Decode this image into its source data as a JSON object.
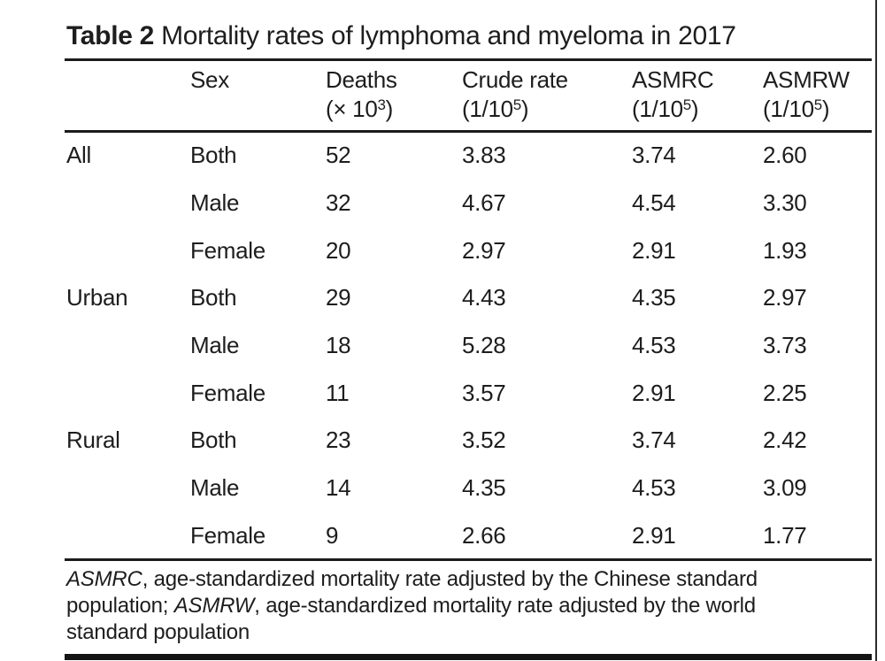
{
  "page": {
    "background": "#ffffff",
    "text_color": "#1d1d1d",
    "rule_color": "#1b1b1b"
  },
  "title": {
    "label": "Table 2",
    "text": "Mortality rates of lymphoma and myeloma in 2017"
  },
  "chart_data": {
    "type": "table",
    "title": "Table 2 Mortality rates of lymphoma and myeloma in 2017",
    "columns": [
      {
        "key": "group",
        "label": "",
        "unit_pre": "",
        "sup": "",
        "unit_post": ""
      },
      {
        "key": "sex",
        "label": "Sex",
        "unit_pre": "",
        "sup": "",
        "unit_post": ""
      },
      {
        "key": "deaths",
        "label": "Deaths",
        "unit_pre": "(× 10",
        "sup": "3",
        "unit_post": ")"
      },
      {
        "key": "crude-rate",
        "label": "Crude rate",
        "unit_pre": "(1/10",
        "sup": "5",
        "unit_post": ")"
      },
      {
        "key": "asmrc",
        "label": "ASMRC",
        "unit_pre": "(1/10",
        "sup": "5",
        "unit_post": ")"
      },
      {
        "key": "asmrw",
        "label": "ASMRW",
        "unit_pre": "(1/10",
        "sup": "5",
        "unit_post": ")"
      }
    ],
    "rows": [
      [
        "All",
        "Both",
        "52",
        "3.83",
        "3.74",
        "2.60"
      ],
      [
        "",
        "Male",
        "32",
        "4.67",
        "4.54",
        "3.30"
      ],
      [
        "",
        "Female",
        "20",
        "2.97",
        "2.91",
        "1.93"
      ],
      [
        "Urban",
        "Both",
        "29",
        "4.43",
        "4.35",
        "2.97"
      ],
      [
        "",
        "Male",
        "18",
        "5.28",
        "4.53",
        "3.73"
      ],
      [
        "",
        "Female",
        "11",
        "3.57",
        "2.91",
        "2.25"
      ],
      [
        "Rural",
        "Both",
        "23",
        "3.52",
        "3.74",
        "2.42"
      ],
      [
        "",
        "Male",
        "14",
        "4.35",
        "4.53",
        "3.09"
      ],
      [
        "",
        "Female",
        "9",
        "2.66",
        "2.91",
        "1.77"
      ]
    ]
  },
  "footnote": {
    "segments": [
      {
        "text": "ASMRC",
        "italic": true
      },
      {
        "text": ", age-standardized mortality rate adjusted by the Chinese standard population; ",
        "italic": false
      },
      {
        "text": "ASMRW",
        "italic": true
      },
      {
        "text": ", age-standardized mortality rate adjusted by the world standard population",
        "italic": false
      }
    ]
  }
}
